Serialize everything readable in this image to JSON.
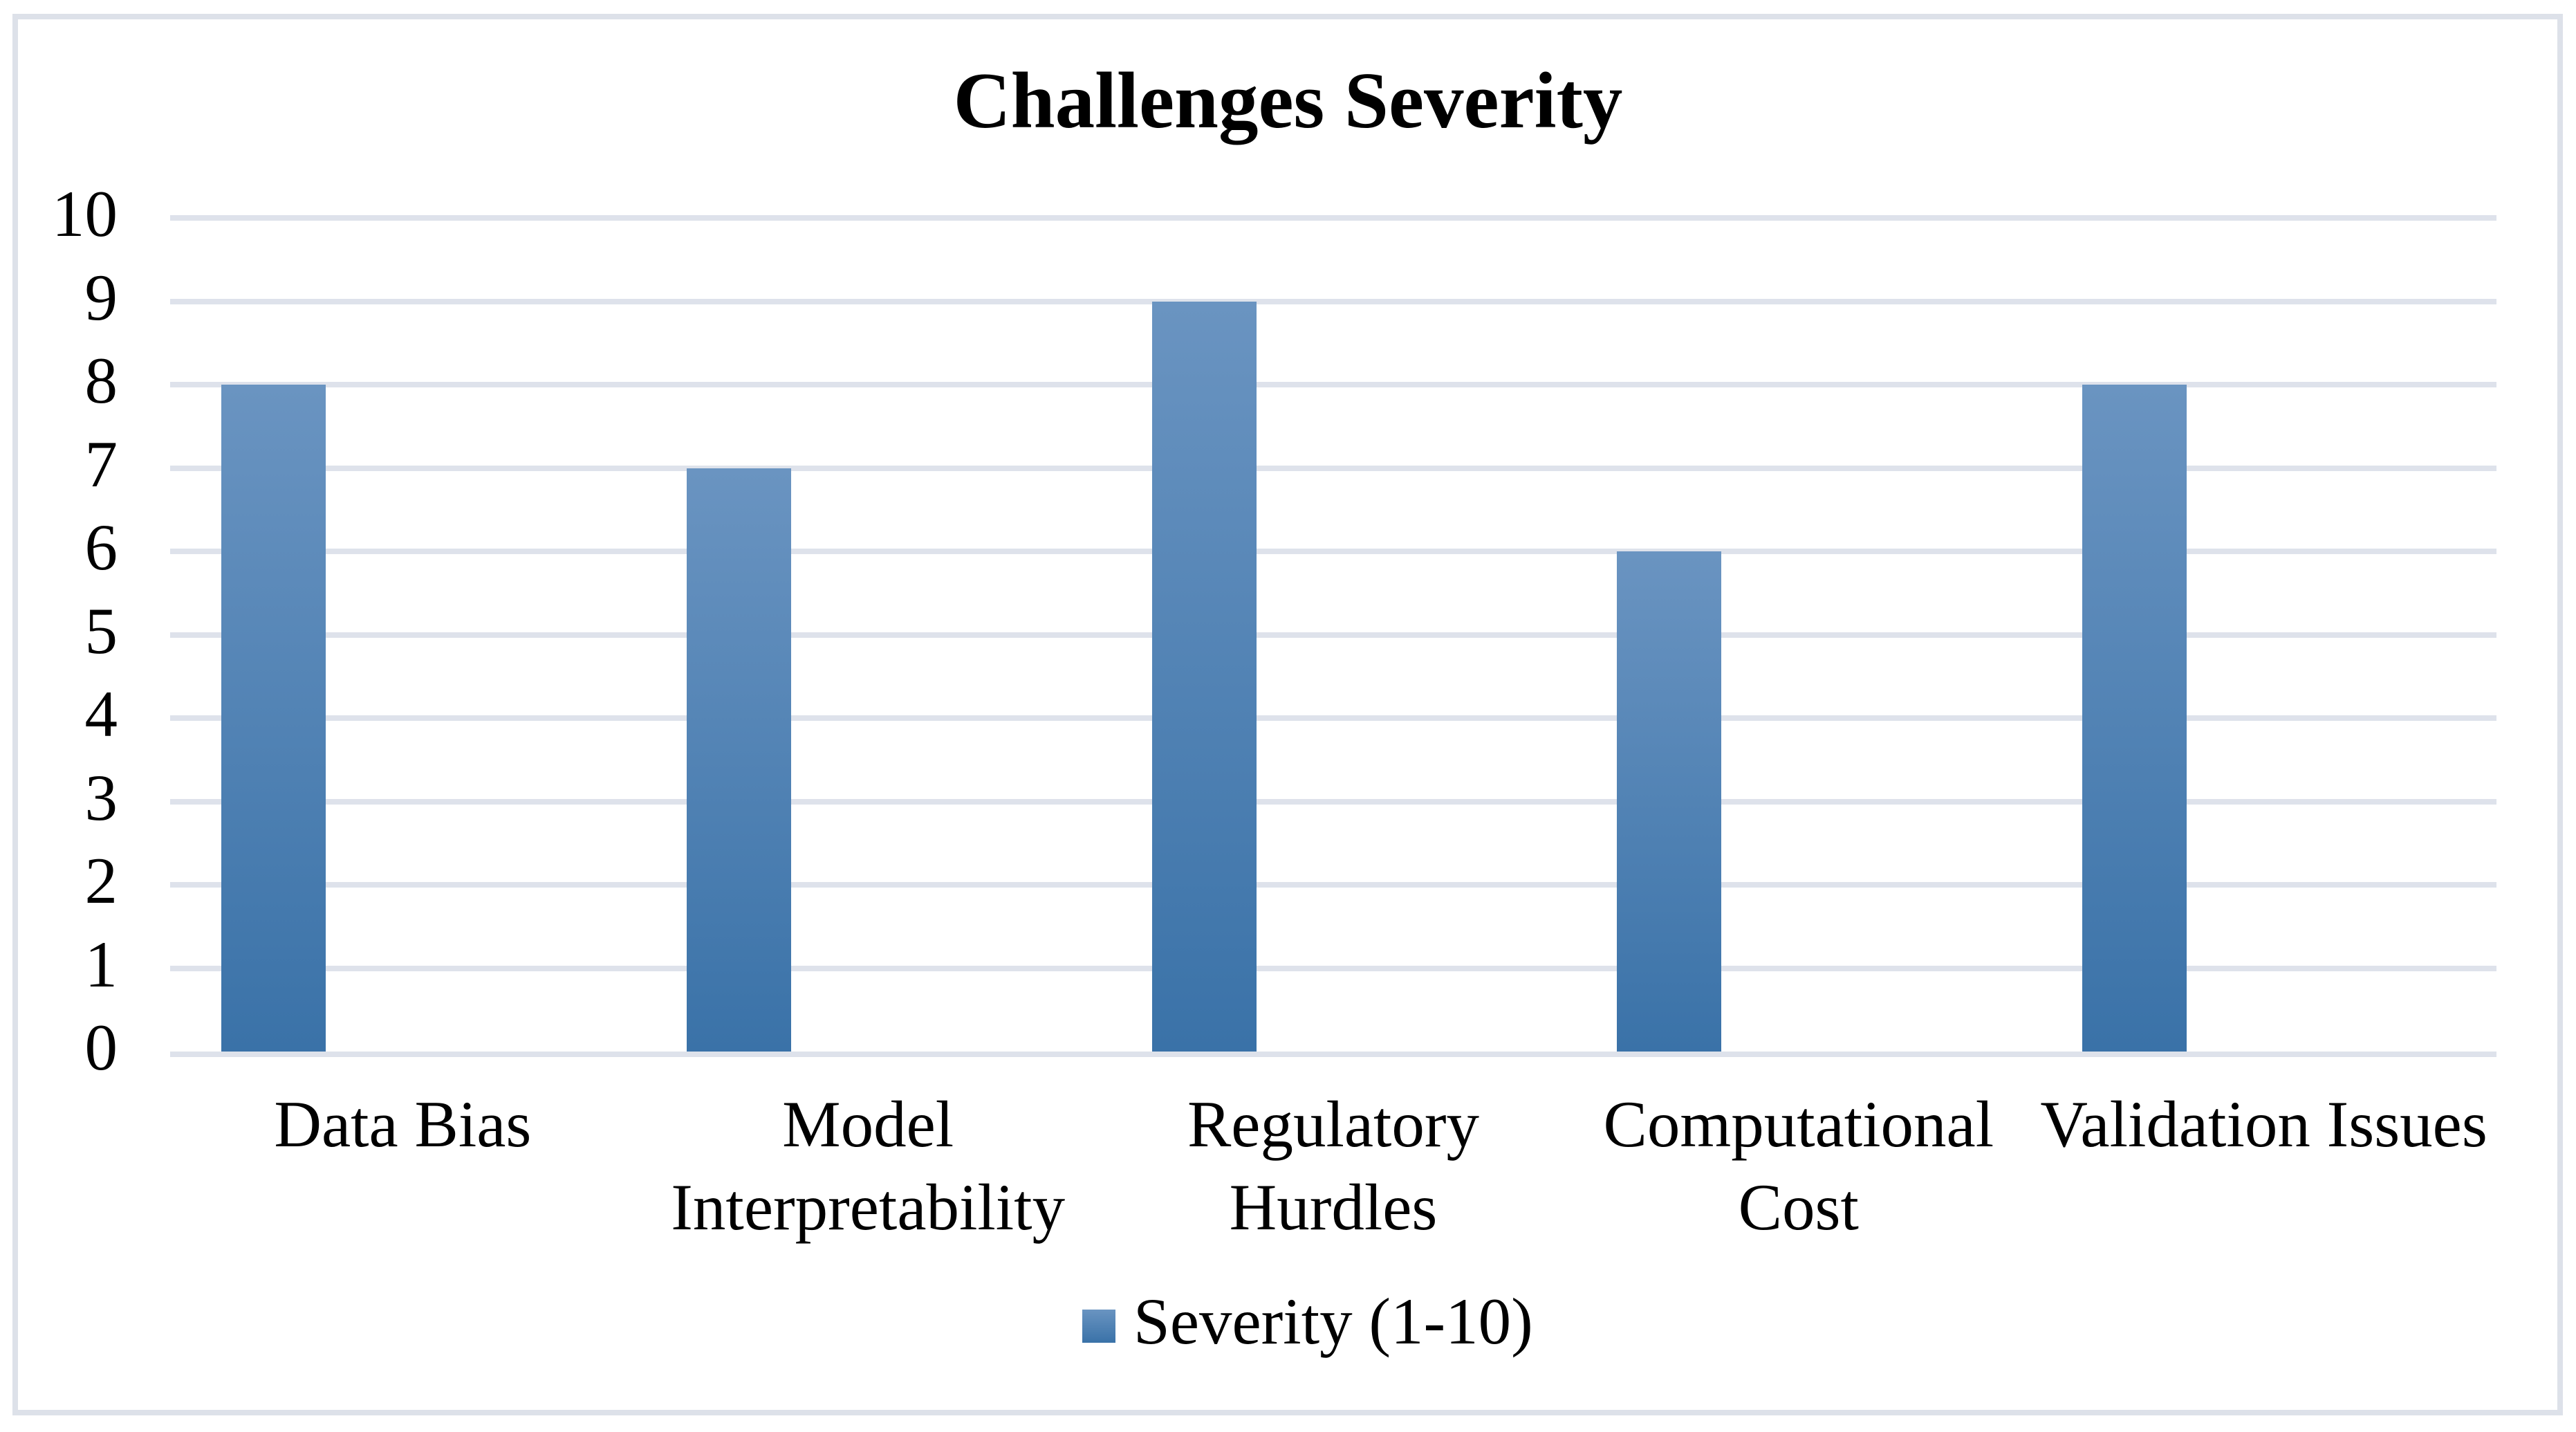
{
  "chart_data": {
    "type": "bar",
    "title": "Challenges Severity",
    "categories": [
      "Data Bias",
      "Model\nInterpretability",
      "Regulatory\nHurdles",
      "Computational\nCost",
      "Validation Issues"
    ],
    "series": [
      {
        "name": "Severity (1-10)",
        "values": [
          8,
          7,
          9,
          6,
          8
        ]
      }
    ],
    "ylim": [
      0,
      10
    ],
    "yticks": [
      0,
      1,
      2,
      3,
      4,
      5,
      6,
      7,
      8,
      9,
      10
    ],
    "grid": true,
    "legend_position": "bottom",
    "colors": {
      "bar_gradient_top": "#6A94C1",
      "bar_gradient_bottom": "#3A72A8",
      "gridline": "#DEE2EB",
      "frame_border": "#DDE1E9",
      "text": "#000000"
    }
  }
}
